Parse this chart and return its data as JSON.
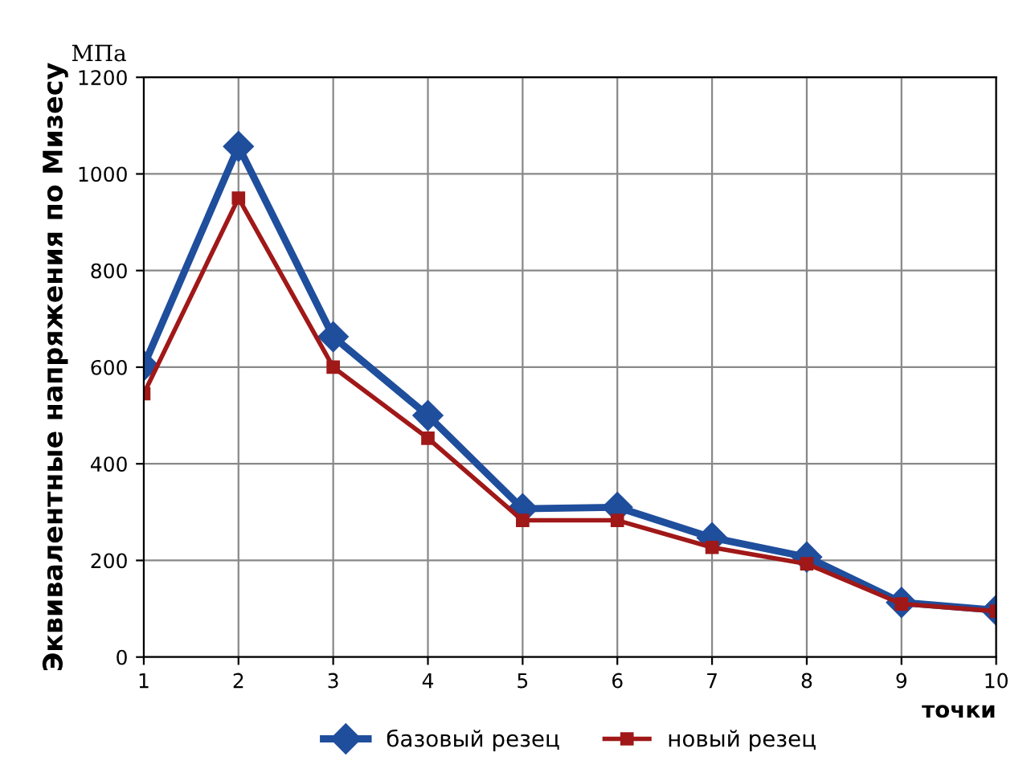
{
  "chart_data": {
    "type": "line",
    "ylabel": "Эквивалентные напряжения по Мизесу",
    "xlabel": "точки",
    "annotations": [
      "МПа"
    ],
    "x": [
      1,
      2,
      3,
      4,
      5,
      6,
      7,
      8,
      9,
      10
    ],
    "series": [
      {
        "name": "базовый резец",
        "color": "#1f4e9c",
        "marker": "diamond",
        "values": [
          603,
          1057,
          663,
          500,
          307,
          310,
          247,
          207,
          113,
          97
        ]
      },
      {
        "name": "новый резец",
        "color": "#a01818",
        "marker": "square",
        "values": [
          545,
          950,
          600,
          453,
          283,
          283,
          227,
          193,
          110,
          95
        ]
      }
    ],
    "xlim": [
      1,
      10
    ],
    "xticks": [
      1,
      2,
      3,
      4,
      5,
      6,
      7,
      8,
      9,
      10
    ],
    "ylim": [
      0,
      1200
    ],
    "yticks": [
      0,
      200,
      400,
      600,
      800,
      1000,
      1200
    ],
    "grid": true,
    "legend": "bottom",
    "line_style": "solid"
  }
}
